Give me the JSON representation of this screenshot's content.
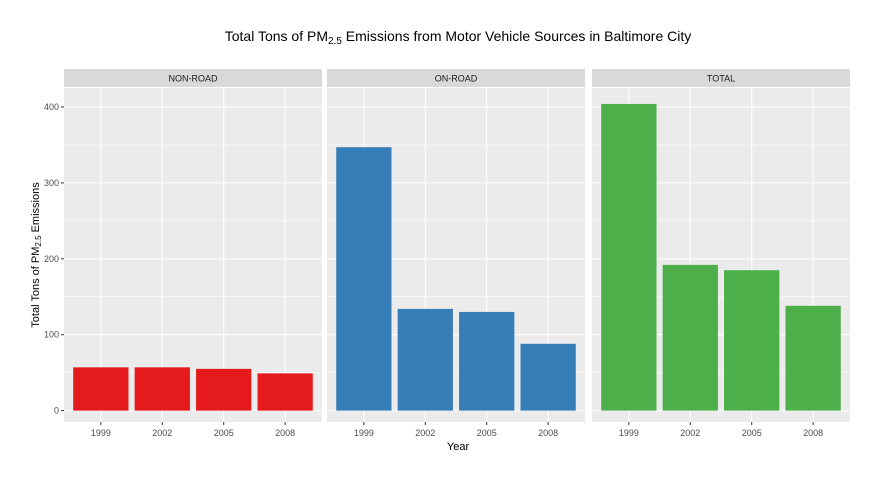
{
  "chart_data": {
    "type": "bar",
    "title": {
      "prefix": "Total Tons of PM",
      "subscript": "2.5",
      "suffix": " Emissions from Motor Vehicle Sources in Baltimore City"
    },
    "xlabel": "Year",
    "ylabel": {
      "prefix": "Total Tons of PM",
      "subscript": "2.5",
      "suffix": " Emissions"
    },
    "categories": [
      "1999",
      "2002",
      "2005",
      "2008"
    ],
    "y_ticks": [
      0,
      100,
      200,
      300,
      400
    ],
    "ylim": [
      -15,
      425
    ],
    "grid": true,
    "legend": "none",
    "facets": [
      {
        "name": "NON-ROAD",
        "color": "#E41A1C",
        "values": [
          57,
          57,
          55,
          49
        ]
      },
      {
        "name": "ON-ROAD",
        "color": "#377EB8",
        "values": [
          347,
          134,
          130,
          88
        ]
      },
      {
        "name": "TOTAL",
        "color": "#4DAF4A",
        "values": [
          404,
          192,
          185,
          138
        ]
      }
    ]
  },
  "theme": {
    "panel_background": "#EBEBEB",
    "strip_background": "#D9D9D9",
    "grid_color": "#FFFFFF"
  }
}
